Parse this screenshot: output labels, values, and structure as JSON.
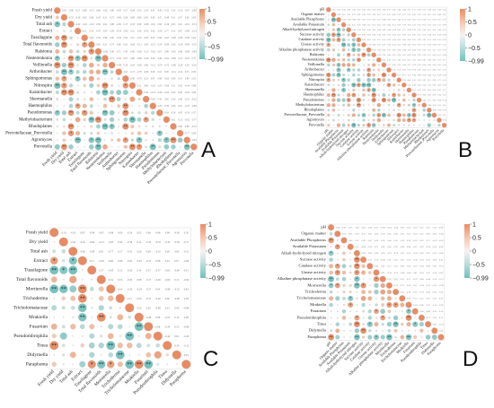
{
  "figure": {
    "panel_letters": [
      "A",
      "B",
      "C",
      "D"
    ],
    "colorbar_ticks": [
      "1",
      "0.5",
      "0",
      "−0.5",
      "−0.99"
    ],
    "colors": {
      "positive": "#e98b62",
      "positive_light": "#f6c7ad",
      "neutral": "#f7f2f2",
      "negative_light": "#b7dcda",
      "negative": "#72c1bd",
      "grid": "#d9d9d9",
      "star": "#222222"
    }
  },
  "chart_data": [
    {
      "type": "heatmap",
      "panel": "A",
      "layout": "lower-triangle correlogram (circles below diagonal, values above diagonal)",
      "title": "",
      "variables": [
        "Fresh yield",
        "Dry yield",
        "Total ash",
        "Extract",
        "Tussilagone",
        "Total flavonoids",
        "Ralstonia",
        "Nesterenkonia",
        "Veillonella",
        "Arthrobacter",
        "Sphingomonas",
        "Nitrospira",
        "Kaistobacter",
        "Skermanella",
        "Haemophilus",
        "Pseudomonas",
        "Methylobacterium",
        "Rhodoplanes",
        "Prevotellaceae_Prevotella",
        "Agromyces",
        "Prevotella"
      ],
      "color_range": [
        -0.99,
        1
      ],
      "legend": "right"
    },
    {
      "type": "heatmap",
      "panel": "B",
      "layout": "lower-triangle correlogram (circles below diagonal, values above diagonal)",
      "title": "",
      "variables": [
        "pH",
        "Organic matter",
        "Available Phosphorus",
        "Available Potassium",
        "Alkali-hydrolyzed nitrogen",
        "Sucrase activity",
        "Catalase activity",
        "Urease activity",
        "Alkaline phosphatase activity",
        "Ralstonia",
        "Nesterenkonia",
        "Veillonella",
        "Arthrobacter",
        "Sphingomonas",
        "Nitrospira",
        "Kaistobacter",
        "Skermanella",
        "Haemophilus",
        "Pseudomonas",
        "Methylobacterium",
        "Rhodoplanes",
        "Prevotellaceae_Prevotella",
        "Agromyces",
        "Prevotella"
      ],
      "color_range": [
        -0.99,
        1
      ],
      "legend": "right"
    },
    {
      "type": "heatmap",
      "panel": "C",
      "layout": "lower-triangle correlogram (circles below diagonal, values above diagonal)",
      "title": "",
      "variables": [
        "Fresh yield",
        "Dry yield",
        "Total ash",
        "Extract",
        "Tussilagone",
        "Total flavonoids",
        "Mortierella",
        "Trichoderma",
        "Tricholomataceae",
        "Mrakiella",
        "Fusarium",
        "Pseudombrophila",
        "Tinea",
        "Didymella",
        "Paraphoma"
      ],
      "color_range": [
        -0.99,
        1
      ],
      "legend": "right"
    },
    {
      "type": "heatmap",
      "panel": "D",
      "layout": "lower-triangle correlogram (circles below diagonal, values above diagonal)",
      "title": "",
      "variables": [
        "pH",
        "Organic matter",
        "Available Phosphorus",
        "Available Potassium",
        "Alkali-hydrolyzed nitrogen",
        "Sucrase activity",
        "Catalase activity",
        "Urease activity",
        "Alkaline phosphatase activity",
        "Mortierella",
        "Trichoderma",
        "Tricholomataceae",
        "Mrakiella",
        "Fusarium",
        "Pseudombrophila",
        "Tinea",
        "Didymella",
        "Paraphoma"
      ],
      "color_range": [
        -0.99,
        1
      ],
      "legend": "right"
    }
  ]
}
